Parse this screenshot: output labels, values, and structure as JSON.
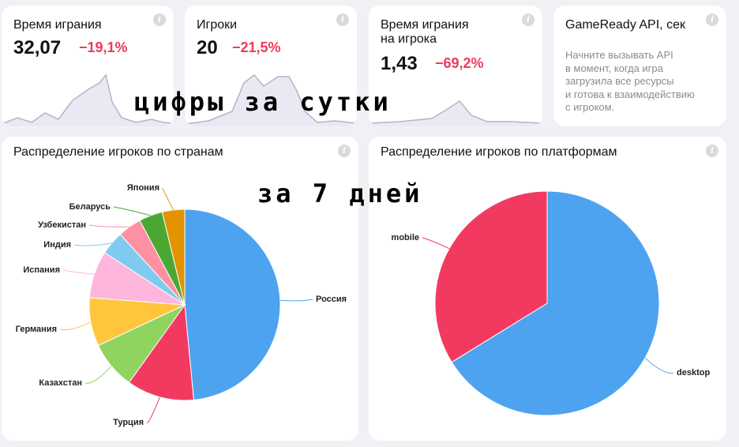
{
  "kpis": [
    {
      "title": "Время играния",
      "value": "32,07",
      "delta": "−19,1%"
    },
    {
      "title": "Игроки",
      "value": "20",
      "delta": "−21,5%"
    },
    {
      "title": "Время играния на игрока",
      "title_line1": "Время играния",
      "title_line2": "на игрока",
      "value": "1,43",
      "delta": "−69,2%"
    }
  ],
  "gameready": {
    "title": "GameReady API, сек",
    "description_lines": [
      "Начните вызывать API",
      "в момент, когда игра",
      "загрузила все ресурсы",
      "и готова к взаимодействию",
      "с игроком."
    ]
  },
  "countries_chart": {
    "title": "Распределение игроков по странам",
    "chart_data": {
      "type": "pie",
      "labels": [
        "Россия",
        "Турция",
        "Казахстан",
        "Германия",
        "Испания",
        "Индия",
        "Узбекистан",
        "Беларусь",
        "Япония"
      ],
      "values": [
        48.5,
        11.4,
        8.1,
        8.2,
        8.0,
        4.0,
        4.0,
        4.0,
        3.8
      ],
      "colors": [
        "#4da3ef",
        "#f23a61",
        "#8fd45f",
        "#ffc53d",
        "#ffb6dc",
        "#7fcbf0",
        "#ff8fa3",
        "#4aa832",
        "#e29400"
      ]
    }
  },
  "platforms_chart": {
    "title": "Распределение игроков по платформам",
    "chart_data": {
      "type": "pie",
      "labels": [
        "desktop",
        "mobile"
      ],
      "values": [
        66.2,
        33.8
      ],
      "colors": [
        "#4da3ef",
        "#f23a61"
      ]
    }
  },
  "overlays": {
    "daily": "цифры за сутки",
    "weekly": "за 7 дней"
  },
  "accent_colors": {
    "negative": "#ef3a5d"
  }
}
